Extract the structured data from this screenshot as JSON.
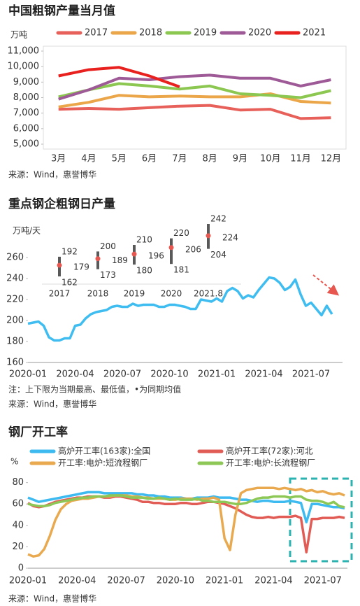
{
  "chart_data": [
    {
      "type": "line",
      "title": "中国粗钢产量当月值",
      "y_unit": "万吨",
      "source": "来源：Wind，惠誉博华",
      "categories": [
        "3月",
        "4月",
        "5月",
        "6月",
        "7月",
        "8月",
        "9月",
        "10月",
        "11月",
        "12月"
      ],
      "series": [
        {
          "name": "2017",
          "color": "#e8605a",
          "values": [
            7250,
            7300,
            7250,
            7350,
            7450,
            7500,
            7200,
            7250,
            6650,
            6700
          ]
        },
        {
          "name": "2018",
          "color": "#eba64a",
          "values": [
            7400,
            7700,
            8150,
            8050,
            8100,
            8050,
            8050,
            8250,
            7750,
            7650
          ]
        },
        {
          "name": "2019",
          "color": "#8cc751",
          "values": [
            8050,
            8500,
            8900,
            8750,
            8550,
            8750,
            8250,
            8150,
            8000,
            8450
          ]
        },
        {
          "name": "2020",
          "color": "#9e5a96",
          "values": [
            7900,
            8500,
            9250,
            9150,
            9350,
            9450,
            9250,
            9250,
            8750,
            9150
          ]
        },
        {
          "name": "2021",
          "color": "#e8201e",
          "values": [
            9400,
            9800,
            9950,
            9400,
            8700,
            null,
            null,
            null,
            null,
            null
          ]
        }
      ],
      "ylim": [
        5000,
        11000
      ],
      "yticks": [
        {
          "value": 5000,
          "label": "5,000"
        },
        {
          "value": 6000,
          "label": "6,000"
        },
        {
          "value": 7000,
          "label": "7,000"
        },
        {
          "value": 8000,
          "label": "8,000"
        },
        {
          "value": 9000,
          "label": "9,000"
        },
        {
          "value": 10000,
          "label": "10,000"
        },
        {
          "value": 11000,
          "label": "11,000"
        }
      ]
    },
    {
      "type": "line",
      "title": "重点钢企粗钢日产量",
      "y_unit": "万吨/天",
      "note": "注：上下限为当期最高、最低值，•为同期均值",
      "source": "来源：Wind，惠誉博华",
      "categories": [
        "2020-01",
        null,
        null,
        null,
        null,
        null,
        null,
        null,
        null,
        "2020-04",
        null,
        null,
        null,
        null,
        null,
        null,
        null,
        null,
        "2020-07",
        null,
        null,
        null,
        null,
        null,
        null,
        null,
        null,
        "2020-10",
        null,
        null,
        null,
        null,
        null,
        null,
        null,
        null,
        "2021-01",
        null,
        null,
        null,
        null,
        null,
        null,
        null,
        null,
        "2021-04",
        null,
        null,
        null,
        null,
        null,
        null,
        null,
        null,
        "2021-07",
        null,
        null,
        null,
        null
      ],
      "series": [
        {
          "color": "#3fbdf0",
          "values": [
            197,
            198,
            199,
            195,
            184,
            181,
            181,
            183,
            183,
            195,
            196,
            202,
            206,
            208,
            209,
            210,
            213,
            214,
            213,
            213,
            216,
            214,
            215,
            215,
            215,
            213,
            213,
            215,
            215,
            214,
            213,
            211,
            211,
            220,
            219,
            218,
            221,
            218,
            228,
            231,
            228,
            221,
            224,
            222,
            229,
            235,
            241,
            240,
            236,
            229,
            232,
            239,
            225,
            214,
            217,
            211,
            205,
            214,
            206
          ]
        }
      ],
      "ylim": [
        160,
        260
      ],
      "yticks": [
        160,
        180,
        200,
        220,
        240,
        260
      ]
    },
    {
      "type": "range",
      "categories": [
        "2017",
        "2018",
        "2019",
        "2020",
        "2021.8"
      ],
      "max": [
        192,
        200,
        210,
        220,
        242
      ],
      "mean": [
        179,
        189,
        196,
        206,
        224
      ],
      "min": [
        162,
        173,
        180,
        181,
        204
      ],
      "bar_color": "#595959",
      "mean_color": "#e8574f"
    },
    {
      "type": "line",
      "title": "钢厂开工率",
      "y_unit": "%",
      "source": "来源：Wind，惠誉博华",
      "categories": [
        "2020-01",
        null,
        null,
        null,
        null,
        null,
        null,
        null,
        null,
        "2020-04",
        null,
        null,
        null,
        null,
        null,
        null,
        null,
        null,
        "2020-07",
        null,
        null,
        null,
        null,
        null,
        null,
        null,
        null,
        "2020-10",
        null,
        null,
        null,
        null,
        null,
        null,
        null,
        null,
        "2021-01",
        null,
        null,
        null,
        null,
        null,
        null,
        null,
        null,
        "2021-04",
        null,
        null,
        null,
        null,
        null,
        null,
        null,
        null,
        "2021-07",
        null,
        null,
        null,
        null
      ],
      "series": [
        {
          "name": "高炉开工率(163家):全国",
          "color": "#3dbaf0",
          "values": [
            66,
            64,
            62,
            63,
            64,
            65,
            66,
            67,
            68,
            69,
            70,
            71,
            71,
            71,
            70,
            70,
            70,
            70,
            70,
            70,
            69,
            69,
            68,
            68,
            67,
            67,
            66,
            66,
            66,
            65,
            65,
            66,
            66,
            66,
            67,
            66,
            66,
            66,
            65,
            64,
            64,
            63,
            62,
            63,
            63,
            62,
            62,
            62,
            63,
            62,
            61,
            43,
            60,
            60,
            59,
            58,
            57,
            57,
            56
          ]
        },
        {
          "name": "高炉开工率(72家):河北",
          "color": "#e25c56",
          "values": [
            61,
            58,
            57,
            58,
            60,
            62,
            63,
            64,
            65,
            66,
            66,
            67,
            67,
            67,
            66,
            66,
            67,
            67,
            66,
            65,
            64,
            62,
            62,
            61,
            61,
            60,
            60,
            60,
            61,
            61,
            60,
            60,
            61,
            62,
            62,
            61,
            60,
            58,
            56,
            53,
            50,
            48,
            47,
            47,
            48,
            47,
            48,
            48,
            48,
            49,
            47,
            15,
            46,
            46,
            47,
            47,
            47,
            48,
            47
          ]
        },
        {
          "name": "开工率:电炉:短流程钢厂",
          "color": "#e9a94f",
          "values": [
            13,
            11,
            12,
            18,
            30,
            45,
            55,
            60,
            63,
            64,
            65,
            65,
            66,
            67,
            67,
            67,
            68,
            68,
            68,
            67,
            67,
            66,
            66,
            65,
            65,
            65,
            64,
            64,
            65,
            65,
            65,
            64,
            65,
            65,
            66,
            64,
            28,
            17,
            50,
            70,
            73,
            74,
            75,
            75,
            75,
            75,
            74,
            75,
            74,
            73,
            74,
            72,
            73,
            71,
            72,
            70,
            69,
            70,
            68
          ]
        },
        {
          "name": "开工率:电炉:长流程钢厂",
          "color": "#8dc857",
          "values": [
            60,
            59,
            58,
            58,
            59,
            61,
            62,
            63,
            64,
            65,
            66,
            66,
            67,
            67,
            67,
            68,
            68,
            68,
            67,
            66,
            66,
            66,
            65,
            65,
            66,
            65,
            64,
            65,
            64,
            64,
            64,
            65,
            63,
            63,
            62,
            62,
            62,
            61,
            60,
            60,
            61,
            63,
            65,
            66,
            66,
            67,
            67,
            67,
            66,
            67,
            67,
            64,
            63,
            63,
            62,
            60,
            62,
            58,
            57
          ]
        }
      ],
      "ylim": [
        0,
        85
      ],
      "yticks": [
        0,
        20,
        40,
        60,
        80
      ]
    }
  ]
}
